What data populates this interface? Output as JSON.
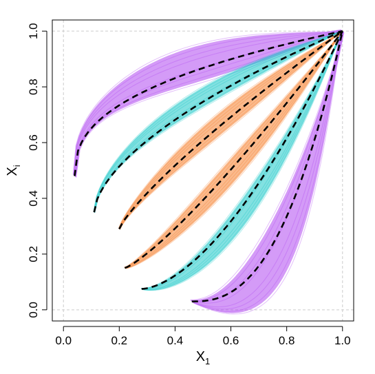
{
  "chart_data": {
    "type": "line",
    "title": "",
    "xlabel": {
      "main": "X",
      "sub": "1"
    },
    "ylabel": {
      "main": "X",
      "sub": "i"
    },
    "xlim": [
      -0.04,
      1.04
    ],
    "ylim": [
      -0.04,
      1.04
    ],
    "xticks": [
      "0.0",
      "0.2",
      "0.4",
      "0.6",
      "0.8",
      "1.0"
    ],
    "yticks": [
      "0.0",
      "0.2",
      "0.4",
      "0.6",
      "0.8",
      "1.0"
    ],
    "reference_lines": [
      0,
      1
    ],
    "grid": false,
    "legend": "none",
    "colors": {
      "purple": "#b048f0",
      "cyan": "#1ec8c8",
      "orange": "#f58230",
      "curve": "#000000",
      "reference": "#cccccc"
    },
    "series": [
      {
        "color": "purple",
        "exponent": 0.4,
        "x_start": 0.04,
        "y_start": 0.48,
        "band_halfwidth": 0.1
      },
      {
        "color": "cyan",
        "exponent": 0.6,
        "x_start": 0.11,
        "y_start": 0.35,
        "band_halfwidth": 0.045
      },
      {
        "color": "orange",
        "exponent": 0.82,
        "x_start": 0.2,
        "y_start": 0.29,
        "band_halfwidth": 0.045
      },
      {
        "color": "orange",
        "exponent": 1.22,
        "x_start": 0.22,
        "y_start": 0.15,
        "band_halfwidth": 0.045
      },
      {
        "color": "cyan",
        "exponent": 1.65,
        "x_start": 0.28,
        "y_start": 0.075,
        "band_halfwidth": 0.045
      },
      {
        "color": "purple",
        "exponent": 2.5,
        "x_start": 0.46,
        "y_start": 0.03,
        "band_halfwidth": 0.1
      }
    ]
  }
}
